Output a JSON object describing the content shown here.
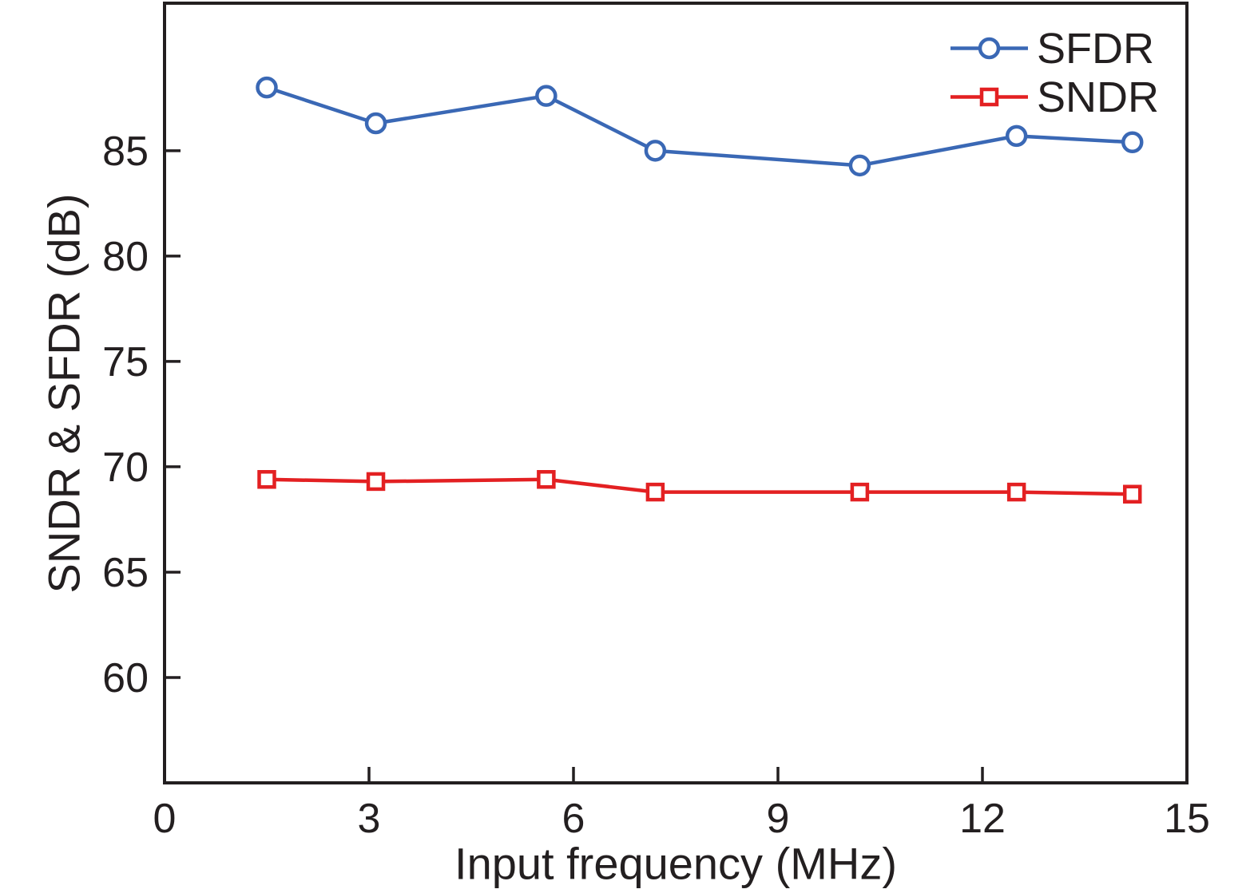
{
  "chart_data": {
    "type": "line",
    "title": "",
    "xlabel": "Input frequency (MHz)",
    "ylabel": "SNDR & SFDR (dB)",
    "xlim": [
      0,
      15
    ],
    "ylim": [
      55,
      92
    ],
    "xticks": [
      "0",
      "3",
      "6",
      "9",
      "12",
      "15"
    ],
    "yticks": [
      "60",
      "65",
      "70",
      "75",
      "80",
      "85"
    ],
    "grid": false,
    "legend_position": "top-right",
    "axis_color": "#231f20",
    "background_color": "#ffffff",
    "x": [
      1.5,
      3.1,
      5.6,
      7.2,
      10.2,
      12.5,
      14.2
    ],
    "series": [
      {
        "name": "SFDR",
        "color": "#3a68b5",
        "marker": "circle",
        "values": [
          88.0,
          86.3,
          87.6,
          85.0,
          84.3,
          85.7,
          85.4
        ]
      },
      {
        "name": "SNDR",
        "color": "#e32022",
        "marker": "square",
        "values": [
          69.4,
          69.3,
          69.4,
          68.8,
          68.8,
          68.8,
          68.7
        ]
      }
    ]
  }
}
